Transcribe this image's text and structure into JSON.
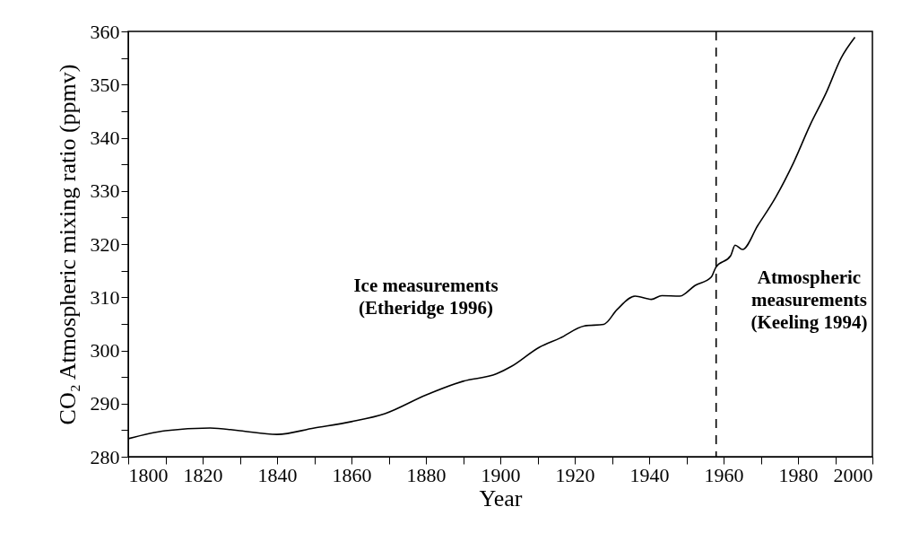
{
  "chart_data": {
    "type": "line",
    "xlabel": "Year",
    "ylabel": "CO₂ Atmospheric mixing ratio (ppmv)",
    "x": [
      1800,
      1810,
      1822,
      1830,
      1840,
      1850,
      1860,
      1869,
      1880,
      1890,
      1899,
      1903,
      1910.5,
      1916,
      1922.6,
      1927.8,
      1931.4,
      1936.2,
      1940.6,
      1943.4,
      1948.2,
      1952.3,
      1956.7,
      1957.9,
      1961.9,
      1963.1,
      1965.1,
      1969.2,
      1974,
      1978.8,
      1983.2,
      1987.6,
      1991.6,
      1995.3
    ],
    "series": [
      {
        "color": "#000000",
        "values": [
          283.4,
          284.9,
          285.4,
          284.9,
          284.2,
          285.4,
          286.6,
          288.1,
          291.6,
          294.2,
          295.6,
          297.0,
          300.6,
          302.3,
          304.6,
          304.9,
          307.7,
          310.2,
          309.6,
          310.3,
          310.2,
          312.2,
          313.8,
          315.6,
          317.8,
          319.8,
          319.0,
          323.5,
          328.8,
          335.3,
          342.3,
          348.5,
          355.0,
          358.9
        ]
      }
    ],
    "xlim": [
      1800,
      2000
    ],
    "xticks": [
      1800,
      {
        "value": 1810,
        "label": null
      },
      1820,
      {
        "value": 1830,
        "label": null
      },
      1840,
      {
        "value": 1850,
        "label": null
      },
      1860,
      {
        "value": 1870,
        "label": null
      },
      1880,
      {
        "value": 1890,
        "label": null
      },
      1900,
      {
        "value": 1910,
        "label": null
      },
      1920,
      {
        "value": 1930,
        "label": null
      },
      1940,
      {
        "value": 1950,
        "label": null
      },
      1960,
      {
        "value": 1970,
        "label": null
      },
      1980,
      {
        "value": 1990,
        "label": null
      },
      2000
    ],
    "ylim": [
      280,
      360
    ],
    "yticks": [
      280,
      {
        "value": 285,
        "label": null
      },
      290,
      {
        "value": 295,
        "label": null
      },
      300,
      {
        "value": 305,
        "label": null
      },
      310,
      {
        "value": 315,
        "label": null
      },
      320,
      {
        "value": 325,
        "label": null
      },
      330,
      {
        "value": 335,
        "label": null
      },
      340,
      {
        "value": 345,
        "label": null
      },
      350,
      {
        "value": 355,
        "label": null
      },
      360
    ],
    "ref_lines": [
      {
        "axis": "x",
        "value": 1958,
        "line_style": "dashed",
        "color": "#000000"
      }
    ],
    "annotations": [
      "Ice measurements\n(Etheridge 1996)",
      "Atmospheric\nmeasurements\n(Keeling 1994)"
    ],
    "grid": false,
    "marker": "none",
    "line_style": "solid"
  }
}
